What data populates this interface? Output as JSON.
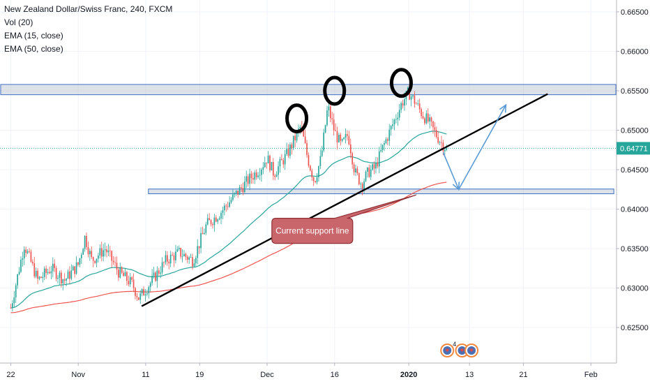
{
  "chart_data": {
    "type": "candlestick",
    "legend": [
      "New Zealand Dollar/Swiss Franc, 240, FXCM",
      "Vol (20)",
      "EMA (15, close)",
      "EMA (50, close)"
    ],
    "y_ticks": [
      "0.66500",
      "0.66000",
      "0.65500",
      "0.65000",
      "0.64500",
      "0.64000",
      "0.63500",
      "0.63000",
      "0.62500"
    ],
    "y_tick_values": [
      0.665,
      0.66,
      0.655,
      0.65,
      0.645,
      0.64,
      0.635,
      0.63,
      0.625
    ],
    "ylim": [
      0.6205,
      0.6665
    ],
    "x_ticks": [
      "22",
      "Nov",
      "11",
      "19",
      "Dec",
      "16",
      "2020",
      "13",
      "21",
      "Feb"
    ],
    "x_tick_values": [
      0,
      10,
      20,
      28,
      38,
      48,
      59,
      68,
      76,
      86
    ],
    "x_bold": [
      "2020"
    ],
    "xlim": [
      -1.6,
      89.8
    ],
    "last_price": "0.64771",
    "last_price_value": 0.64771,
    "price_path": [
      [
        0,
        0.6275
      ],
      [
        2,
        0.6355
      ],
      [
        4,
        0.631
      ],
      [
        6,
        0.6325
      ],
      [
        8,
        0.631
      ],
      [
        10,
        0.633
      ],
      [
        11,
        0.6365
      ],
      [
        12,
        0.6335
      ],
      [
        14,
        0.635
      ],
      [
        16,
        0.632
      ],
      [
        18,
        0.6305
      ],
      [
        19,
        0.6287
      ],
      [
        21,
        0.631
      ],
      [
        23,
        0.6335
      ],
      [
        25,
        0.6345
      ],
      [
        27,
        0.6335
      ],
      [
        29,
        0.638
      ],
      [
        31,
        0.6395
      ],
      [
        33,
        0.6415
      ],
      [
        35,
        0.6435
      ],
      [
        37,
        0.6452
      ],
      [
        38,
        0.6465
      ],
      [
        39,
        0.6445
      ],
      [
        41,
        0.647
      ],
      [
        43,
        0.6505
      ],
      [
        44,
        0.6465
      ],
      [
        45,
        0.6435
      ],
      [
        46,
        0.6465
      ],
      [
        47,
        0.653
      ],
      [
        48,
        0.6498
      ],
      [
        49,
        0.648
      ],
      [
        50,
        0.6495
      ],
      [
        51,
        0.6447
      ],
      [
        52,
        0.6432
      ],
      [
        53,
        0.6447
      ],
      [
        54,
        0.6452
      ],
      [
        55,
        0.6475
      ],
      [
        56,
        0.6495
      ],
      [
        57,
        0.6515
      ],
      [
        58,
        0.6535
      ],
      [
        59,
        0.6548
      ],
      [
        60,
        0.6535
      ],
      [
        61,
        0.652
      ],
      [
        62,
        0.651
      ],
      [
        63,
        0.6495
      ],
      [
        64,
        0.6482
      ],
      [
        64.6,
        0.64771
      ]
    ],
    "ema15_color": "#26a69a",
    "ema50_color": "#ef5350",
    "bull_color": "#26a69a",
    "bear_color": "#ef5350",
    "resistance_zone": {
      "x_from": -1.5,
      "x_to": 89.7,
      "y_low": 0.6545,
      "y_high": 0.6558
    },
    "support_zone": {
      "x_from": 20.4,
      "x_to": 89.4,
      "y_low": 0.64195,
      "y_high": 0.64255
    },
    "trendline": {
      "from": [
        19.4,
        0.6277
      ],
      "to": [
        79.6,
        0.6546
      ],
      "color": "#000000"
    },
    "projection": {
      "points": [
        [
          64.1,
          0.6472
        ],
        [
          66.4,
          0.6425
        ],
        [
          73.4,
          0.6532
        ]
      ],
      "color": "#5b9bd5"
    },
    "circles": [
      {
        "x": 42.4,
        "y": 0.6515
      },
      {
        "x": 48.0,
        "y": 0.655
      },
      {
        "x": 57.9,
        "y": 0.656
      }
    ],
    "callout": {
      "text": "Current support line",
      "x": 44.7,
      "y": 0.63725,
      "pointer_to": [
        60.1,
        0.6418
      ],
      "fill": "#c9666b",
      "stroke": "#8f2f34"
    },
    "event_icons": [
      {
        "x": 64.7,
        "count": "4"
      },
      {
        "x": 66.9,
        "count": ""
      },
      {
        "x": 68.3,
        "count": ""
      }
    ]
  }
}
